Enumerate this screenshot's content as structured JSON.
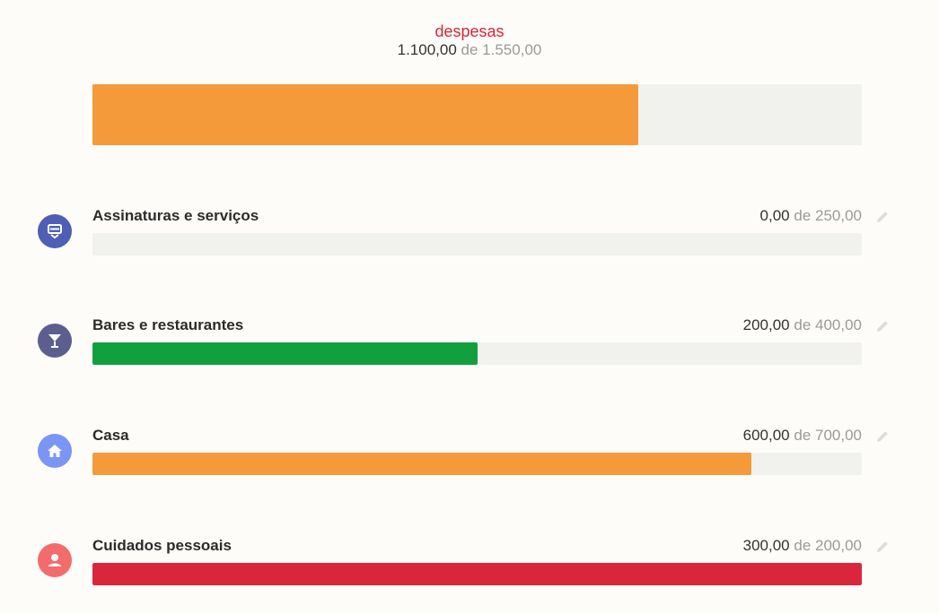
{
  "summary": {
    "title": "despesas",
    "spent": "1.100,00",
    "limit_text": "de 1.550,00",
    "progress": 0.71,
    "bar_color": "#f59a3b"
  },
  "categories": [
    {
      "name": "Assinaturas e serviços",
      "spent": "0,00",
      "limit_text": "de 250,00",
      "progress": 0,
      "bar_color": "#f59a3b",
      "icon": "subscription-icon",
      "icon_bg": "#4f5fb5"
    },
    {
      "name": "Bares e restaurantes",
      "spent": "200,00",
      "limit_text": "de 400,00",
      "progress": 0.5,
      "bar_color": "#12a03f",
      "icon": "cocktail-icon",
      "icon_bg": "#5c5f8e"
    },
    {
      "name": "Casa",
      "spent": "600,00",
      "limit_text": "de 700,00",
      "progress": 0.857,
      "bar_color": "#f59a3b",
      "icon": "home-icon",
      "icon_bg": "#7b95f4"
    },
    {
      "name": "Cuidados pessoais",
      "spent": "300,00",
      "limit_text": "de 200,00",
      "progress": 1,
      "bar_color": "#d9263b",
      "icon": "person-icon",
      "icon_bg": "#f26c6c"
    }
  ]
}
